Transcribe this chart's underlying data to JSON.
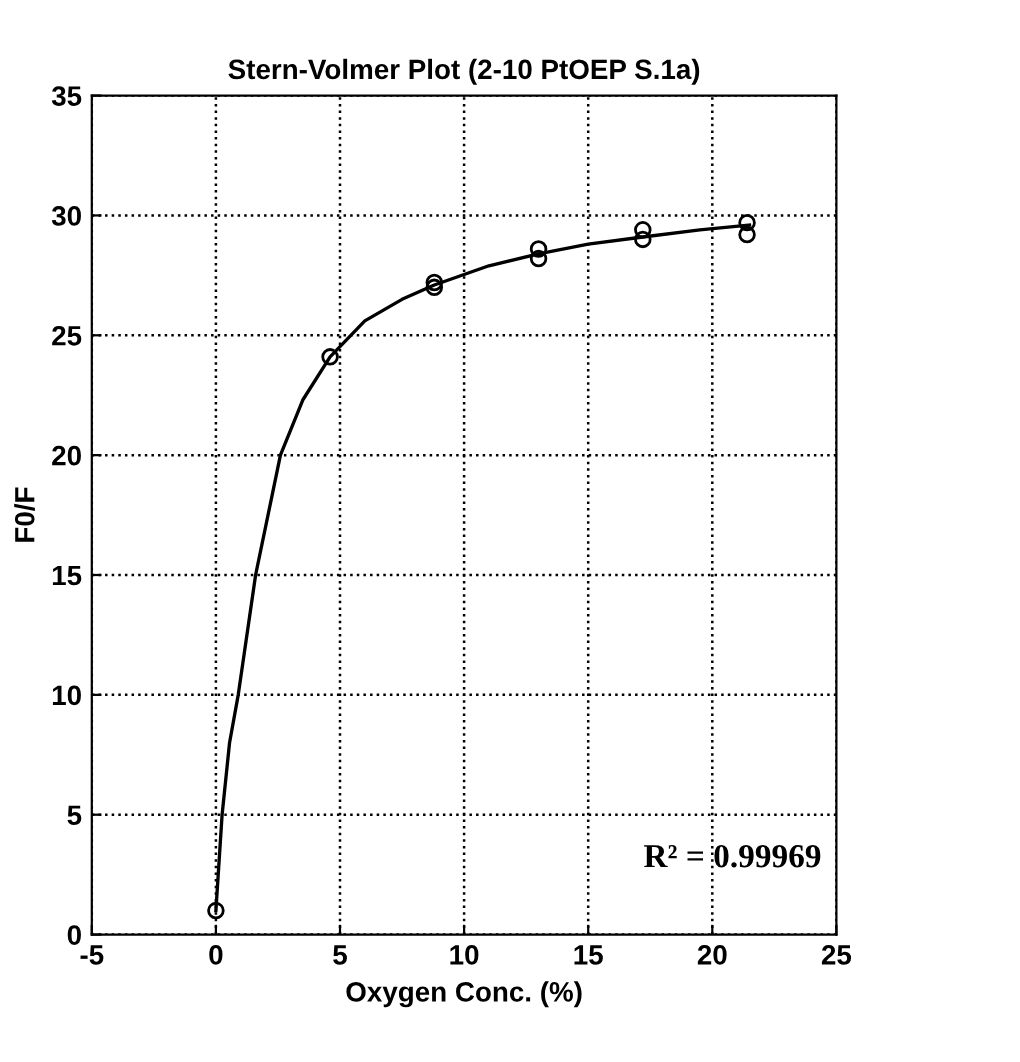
{
  "chart_data": {
    "type": "scatter",
    "title": "Stern-Volmer Plot (2-10 PtOEP S.1a)",
    "xlabel": "Oxygen Conc. (%)",
    "ylabel": "F0/F",
    "xlim": [
      -5,
      25
    ],
    "ylim": [
      0,
      35
    ],
    "xticks": [
      -5,
      0,
      5,
      10,
      15,
      20,
      25
    ],
    "yticks": [
      0,
      5,
      10,
      15,
      20,
      25,
      30,
      35
    ],
    "grid": true,
    "marker": "circle",
    "series": [
      {
        "color": "#000000",
        "x": [
          0,
          4.6,
          8.8,
          8.8,
          13,
          13,
          17.2,
          17.2,
          21.4,
          21.4
        ],
        "values": [
          1.0,
          24.1,
          27.0,
          27.2,
          28.2,
          28.6,
          29.0,
          29.4,
          29.2,
          29.7
        ]
      },
      {
        "type": "line",
        "color": "#000000",
        "marker": "none",
        "line_style": "solid",
        "x": [
          0,
          0.25,
          0.55,
          0.9,
          1.6,
          2.6,
          3.5,
          4.6,
          6,
          7.5,
          8.8,
          11,
          13,
          15,
          17.2,
          19.5,
          21.5
        ],
        "values": [
          1,
          5,
          8,
          10,
          15,
          20,
          22.3,
          24.1,
          25.6,
          26.5,
          27.1,
          27.9,
          28.4,
          28.8,
          29.1,
          29.4,
          29.6
        ]
      }
    ],
    "annotations": [
      "R² = 0.99969"
    ]
  }
}
